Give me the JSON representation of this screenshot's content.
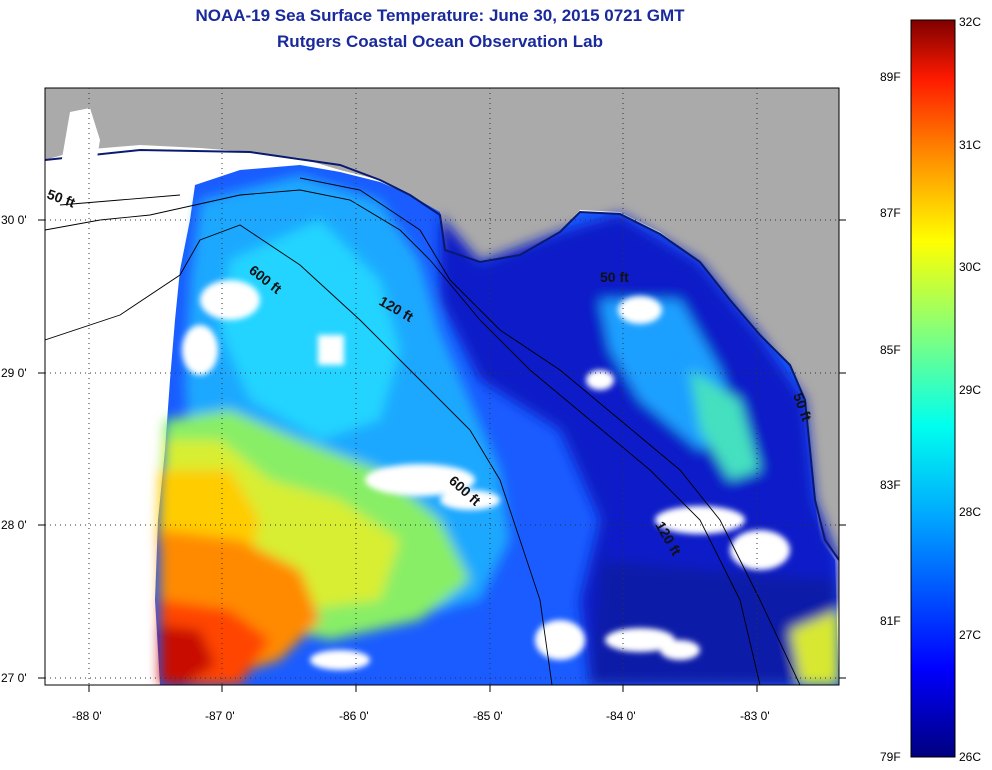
{
  "title": {
    "line1": "NOAA-19 Sea Surface Temperature:  June 30, 2015 0721 GMT",
    "line2": "Rutgers Coastal Ocean Observation Lab"
  },
  "axes": {
    "lon_labels": [
      "-88 0'",
      "-87 0'",
      "-86 0'",
      "-85 0'",
      "-84 0'",
      "-83 0'"
    ],
    "lat_labels": [
      "30 0'",
      "29 0'",
      "28 0'",
      "27 0'"
    ],
    "lon_range": [
      -88.35,
      -82.4
    ],
    "lat_range": [
      26.98,
      30.85
    ],
    "grid": "dotted"
  },
  "contours": [
    "50 ft",
    "600 ft",
    "120 ft",
    "50 ft",
    "600 ft",
    "120 ft",
    "50 ft"
  ],
  "colorbar": {
    "celsius": [
      "32C",
      "31C",
      "30C",
      "29C",
      "28C",
      "27C",
      "26C"
    ],
    "fahrenheit": [
      "89F",
      "87F",
      "85F",
      "83F",
      "81F",
      "79F"
    ],
    "range_c": [
      26,
      32
    ]
  },
  "colors": {
    "land": "#aaaaaa",
    "nodata": "#ffffff",
    "title": "#1a2a9c"
  }
}
